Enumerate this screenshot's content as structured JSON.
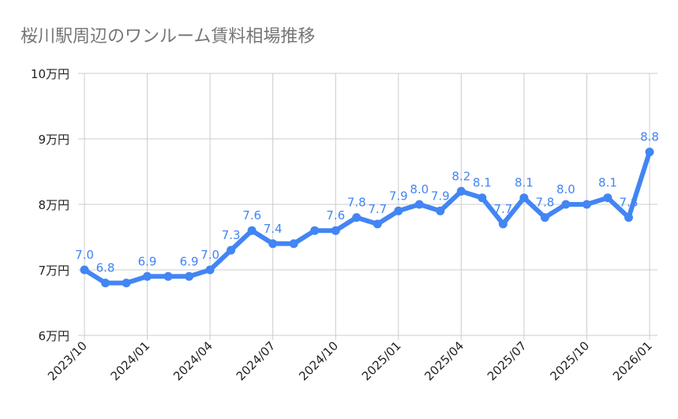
{
  "chart_data": {
    "type": "line",
    "title": "桜川駅周辺のワンルーム賃料相場推移",
    "x": [
      "2023/10",
      "2023/11",
      "2023/12",
      "2024/01",
      "2024/02",
      "2024/03",
      "2024/04",
      "2024/05",
      "2024/06",
      "2024/07",
      "2024/08",
      "2024/09",
      "2024/10",
      "2024/11",
      "2024/12",
      "2025/01",
      "2025/02",
      "2025/03",
      "2025/04",
      "2025/05",
      "2025/06",
      "2025/07",
      "2025/08",
      "2025/09",
      "2025/10",
      "2025/11",
      "2025/12",
      "2026/01"
    ],
    "values": [
      7.0,
      6.8,
      6.8,
      6.9,
      6.9,
      6.9,
      7.0,
      7.3,
      7.6,
      7.4,
      7.4,
      7.6,
      7.6,
      7.8,
      7.7,
      7.9,
      8.0,
      7.9,
      8.2,
      8.1,
      7.7,
      8.1,
      7.8,
      8.0,
      8.0,
      8.1,
      7.8,
      8.8
    ],
    "data_labels": [
      "7.0",
      "6.8",
      null,
      "6.9",
      null,
      "6.9",
      "7.0",
      "7.3",
      "7.6",
      "7.4",
      null,
      null,
      "7.6",
      "7.8",
      "7.7",
      "7.9",
      "8.0",
      "7.9",
      "8.2",
      "8.1",
      "7.7",
      "8.1",
      "7.8",
      "8.0",
      null,
      "8.1",
      "7.8",
      "8.8"
    ],
    "x_tick_labels": [
      "2023/10",
      "2024/01",
      "2024/04",
      "2024/07",
      "2024/10",
      "2025/01",
      "2025/04",
      "2025/07",
      "2025/10",
      "2026/01"
    ],
    "y_ticks": [
      6,
      7,
      8,
      9,
      10
    ],
    "y_tick_labels": [
      "6万円",
      "7万円",
      "8万円",
      "9万円",
      "10万円"
    ],
    "ylim": [
      6,
      10
    ],
    "grid": true,
    "legend": "none",
    "colors": {
      "series": "#4285f4",
      "label": "#4285f4",
      "grid": "#cccccc",
      "title": "#757575",
      "axis_text": "#222222"
    }
  }
}
